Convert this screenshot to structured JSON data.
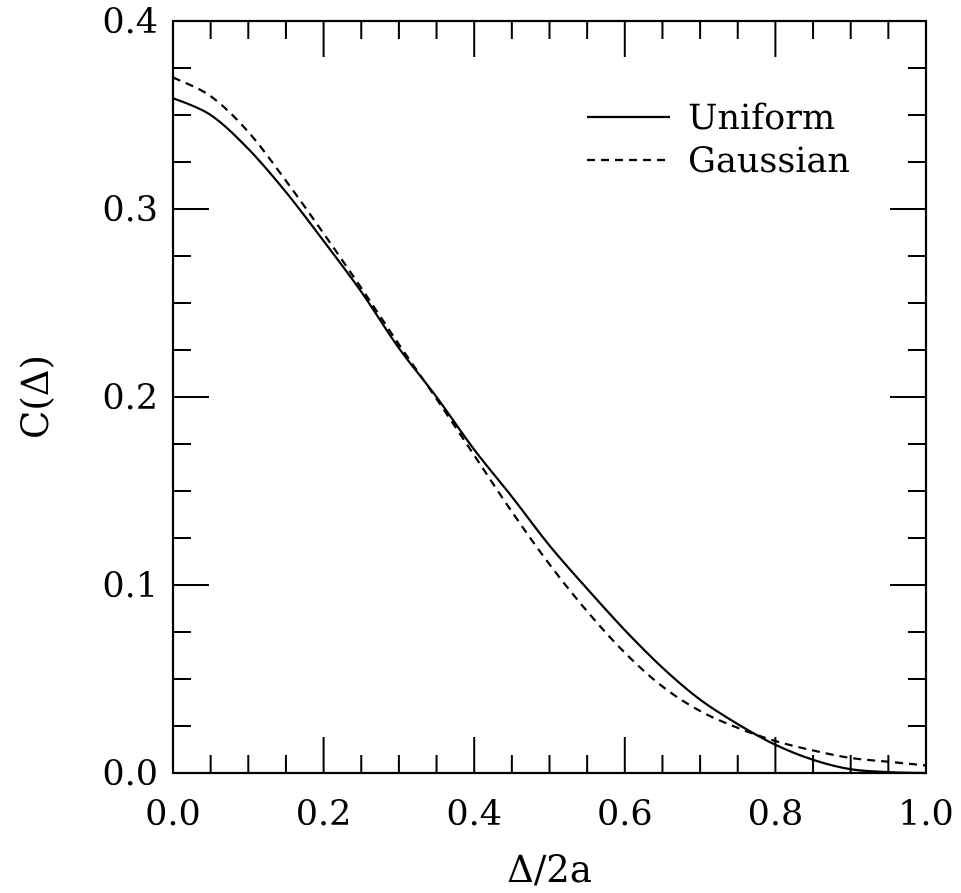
{
  "chart_data": {
    "type": "line",
    "title": "",
    "xlabel": "Δ/2a",
    "ylabel": "C(Δ)",
    "xlim": [
      0.0,
      1.0
    ],
    "ylim": [
      0.0,
      0.4
    ],
    "x_ticks": [
      "0.0",
      "0.2",
      "0.4",
      "0.6",
      "0.8",
      "1.0"
    ],
    "y_ticks": [
      "0.0",
      "0.1",
      "0.2",
      "0.3",
      "0.4"
    ],
    "x_tick_values": [
      0.0,
      0.2,
      0.4,
      0.6,
      0.8,
      1.0
    ],
    "y_tick_values": [
      0.0,
      0.1,
      0.2,
      0.3,
      0.4
    ],
    "grid": false,
    "legend_position": "top-right",
    "x": [
      0.0,
      0.05,
      0.1,
      0.15,
      0.2,
      0.25,
      0.3,
      0.35,
      0.4,
      0.45,
      0.5,
      0.55,
      0.6,
      0.65,
      0.7,
      0.75,
      0.8,
      0.85,
      0.9,
      0.95,
      1.0
    ],
    "series": [
      {
        "name": "Uniform",
        "style": "solid",
        "values": [
          0.359,
          0.35,
          0.332,
          0.309,
          0.283,
          0.256,
          0.226,
          0.2,
          0.172,
          0.147,
          0.121,
          0.098,
          0.076,
          0.056,
          0.039,
          0.026,
          0.015,
          0.007,
          0.002,
          0.0005,
          0.0
        ]
      },
      {
        "name": "Gaussian",
        "style": "dashed",
        "values": [
          0.37,
          0.36,
          0.341,
          0.315,
          0.287,
          0.258,
          0.228,
          0.199,
          0.169,
          0.139,
          0.111,
          0.086,
          0.064,
          0.046,
          0.033,
          0.024,
          0.017,
          0.012,
          0.008,
          0.006,
          0.004
        ]
      }
    ]
  }
}
